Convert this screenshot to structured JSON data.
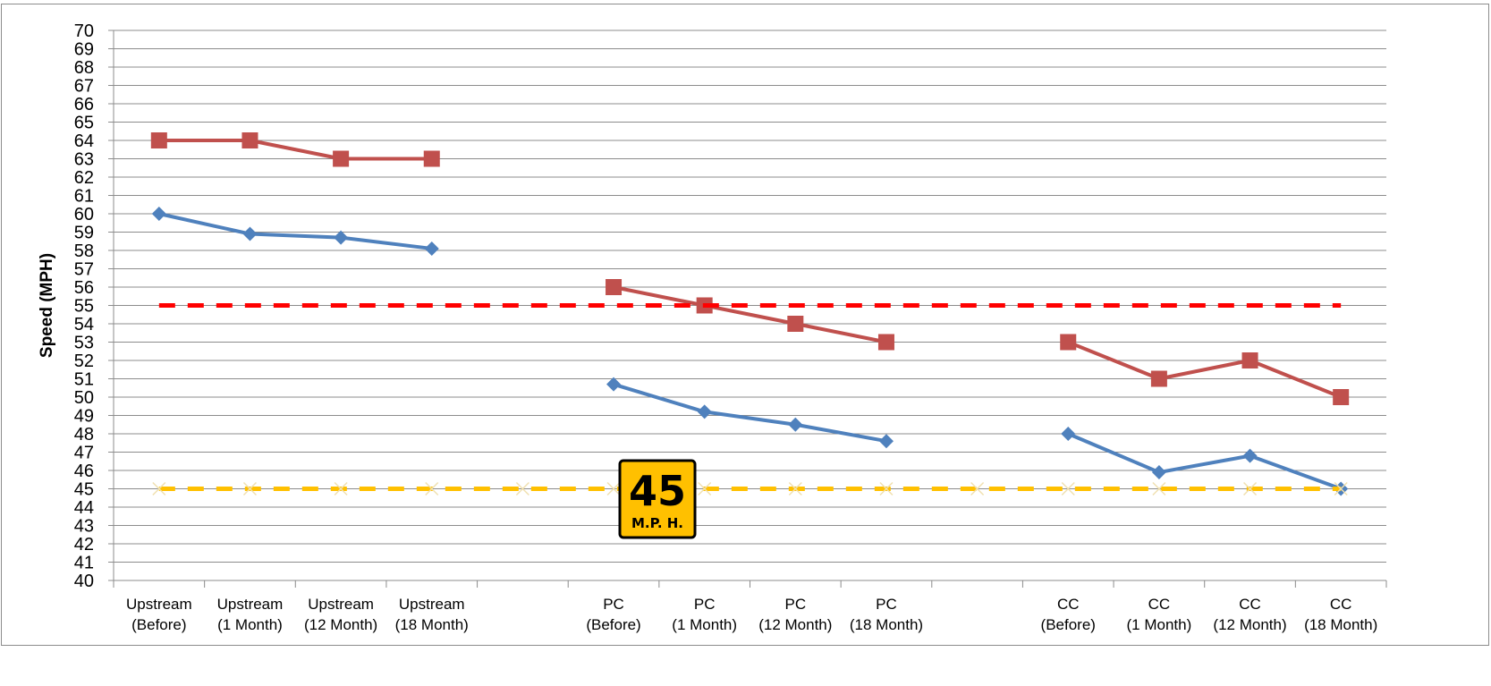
{
  "chart_data": {
    "type": "line",
    "ylabel": "Speed (MPH)",
    "ylim": [
      40,
      70
    ],
    "ytick_step": 1,
    "grid": true,
    "categories": [
      [
        "Upstream",
        "(Before)"
      ],
      [
        "Upstream",
        "(1 Month)"
      ],
      [
        "Upstream",
        "(12 Month)"
      ],
      [
        "Upstream",
        "(18 Month)"
      ],
      [
        "",
        ""
      ],
      [
        "PC",
        "(Before)"
      ],
      [
        "PC",
        "(1 Month)"
      ],
      [
        "PC",
        "(12 Month)"
      ],
      [
        "PC",
        "(18 Month)"
      ],
      [
        "",
        ""
      ],
      [
        "CC",
        "(Before)"
      ],
      [
        "CC",
        "(1 Month)"
      ],
      [
        "CC",
        "(12 Month)"
      ],
      [
        "CC",
        "(18 Month)"
      ]
    ],
    "series": [
      {
        "color": "#c0504d",
        "marker": "square",
        "values": [
          64,
          64,
          63,
          63,
          null,
          56,
          55,
          54,
          53,
          null,
          53,
          51,
          52,
          50
        ]
      },
      {
        "color": "#4f81bd",
        "marker": "diamond",
        "values": [
          60,
          58.9,
          58.7,
          58.1,
          null,
          50.7,
          49.2,
          48.5,
          47.6,
          null,
          48,
          45.9,
          46.8,
          45
        ]
      },
      {
        "color": "#ff0000",
        "marker": "none",
        "dashed": true,
        "values": [
          55,
          55,
          55,
          55,
          55,
          55,
          55,
          55,
          55,
          55,
          55,
          55,
          55,
          55
        ]
      },
      {
        "color": "#ffc000",
        "marker": "cross",
        "dashed": true,
        "values": [
          45,
          45,
          45,
          45,
          45,
          45,
          45,
          45,
          45,
          45,
          45,
          45,
          45,
          45
        ]
      }
    ],
    "sign": {
      "number": "45",
      "unit": "M.P. H.",
      "bg": "#ffc000"
    }
  }
}
